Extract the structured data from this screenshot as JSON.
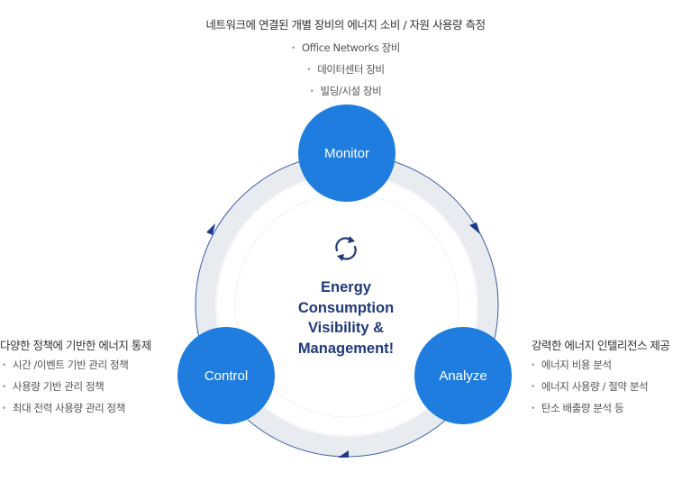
{
  "colors": {
    "node_fill": "#1f7de0",
    "center_text": "#1f3a7a",
    "arrow": "#1e3a8a",
    "ring": "#e8ecf0"
  },
  "monitor": {
    "title": "네트워크에 연결된 개별 장비의 에너지 소비 / 자원 사용량 측정",
    "items": [
      "Office Networks 장비",
      "데이터센터 장비",
      "빌딩/시설 장비"
    ]
  },
  "control": {
    "title": "다양한 정책에 기반한 에너지 통제",
    "items": [
      "시간 /이벤트 기반 관리 정책",
      "사용량 기반 관리 정책",
      "최대 전력 사용량 관리 정책"
    ]
  },
  "analyze": {
    "title": "강력한 에너지 인텔리전스 제공",
    "items": [
      "에너지 비용 분석",
      "에너지 사용량 / 절약 분석",
      "탄소 배출량 분석 등"
    ]
  },
  "nodes": {
    "monitor": "Monitor",
    "control": "Control",
    "analyze": "Analyze"
  },
  "center": {
    "title": "Energy\nConsumption\nVisibility &\nManagement!",
    "icon": "refresh-cycle-icon"
  }
}
